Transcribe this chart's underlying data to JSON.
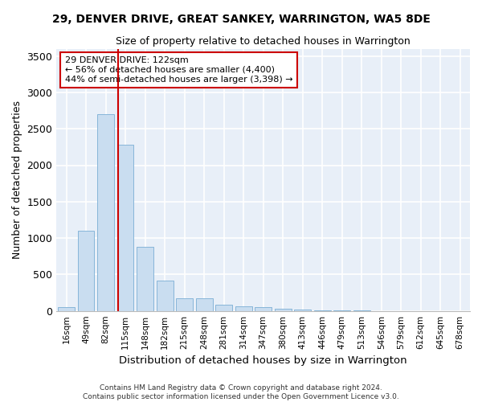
{
  "title": "29, DENVER DRIVE, GREAT SANKEY, WARRINGTON, WA5 8DE",
  "subtitle": "Size of property relative to detached houses in Warrington",
  "xlabel": "Distribution of detached houses by size in Warrington",
  "ylabel": "Number of detached properties",
  "bar_color": "#c9ddf0",
  "bar_edge_color": "#7aadd4",
  "background_color": "#e8eff8",
  "grid_color": "#ffffff",
  "categories": [
    "16sqm",
    "49sqm",
    "82sqm",
    "115sqm",
    "148sqm",
    "182sqm",
    "215sqm",
    "248sqm",
    "281sqm",
    "314sqm",
    "347sqm",
    "380sqm",
    "413sqm",
    "446sqm",
    "479sqm",
    "513sqm",
    "546sqm",
    "579sqm",
    "612sqm",
    "645sqm",
    "678sqm"
  ],
  "values": [
    50,
    1100,
    2700,
    2280,
    880,
    420,
    170,
    170,
    90,
    60,
    50,
    30,
    20,
    8,
    4,
    2,
    1,
    1,
    0,
    0,
    0
  ],
  "ylim": [
    0,
    3600
  ],
  "yticks": [
    0,
    500,
    1000,
    1500,
    2000,
    2500,
    3000,
    3500
  ],
  "property_bin_index": 3,
  "vline_x_offset": 0.07,
  "annotation_title": "29 DENVER DRIVE: 122sqm",
  "annotation_line1": "← 56% of detached houses are smaller (4,400)",
  "annotation_line2": "44% of semi-detached houses are larger (3,398) →",
  "vline_color": "#cc0000",
  "annotation_box_color": "#ffffff",
  "annotation_box_edge": "#cc0000",
  "footnote1": "Contains HM Land Registry data © Crown copyright and database right 2024.",
  "footnote2": "Contains public sector information licensed under the Open Government Licence v3.0."
}
